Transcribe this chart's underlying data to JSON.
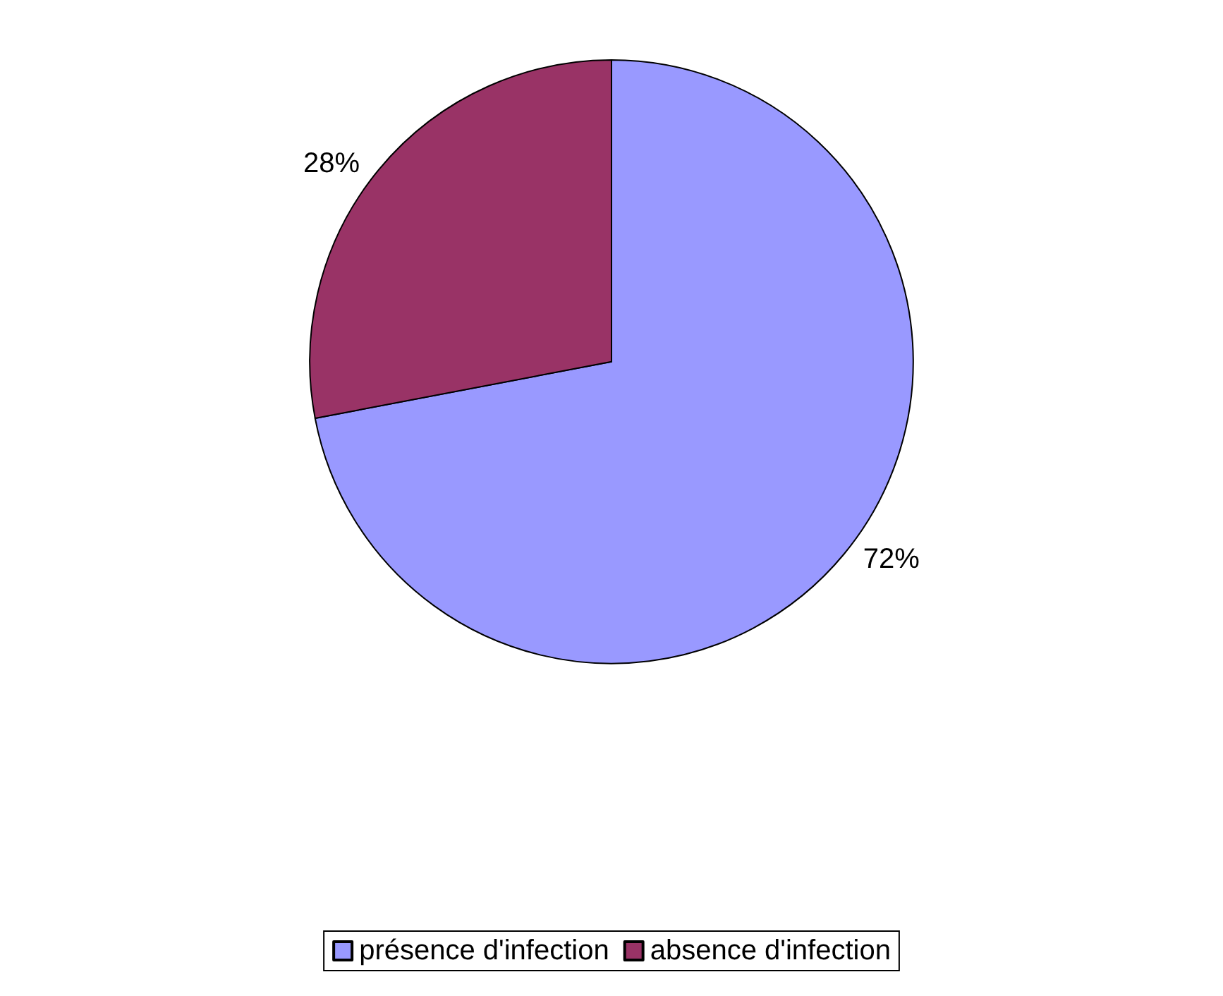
{
  "chart_data": {
    "type": "pie",
    "categories": [
      "présence d'infection",
      "absence d'infection"
    ],
    "values": [
      72,
      28
    ],
    "colors": [
      "#9999ff",
      "#993366"
    ],
    "value_labels": [
      "72%",
      "28%"
    ],
    "legend": "bottom"
  }
}
